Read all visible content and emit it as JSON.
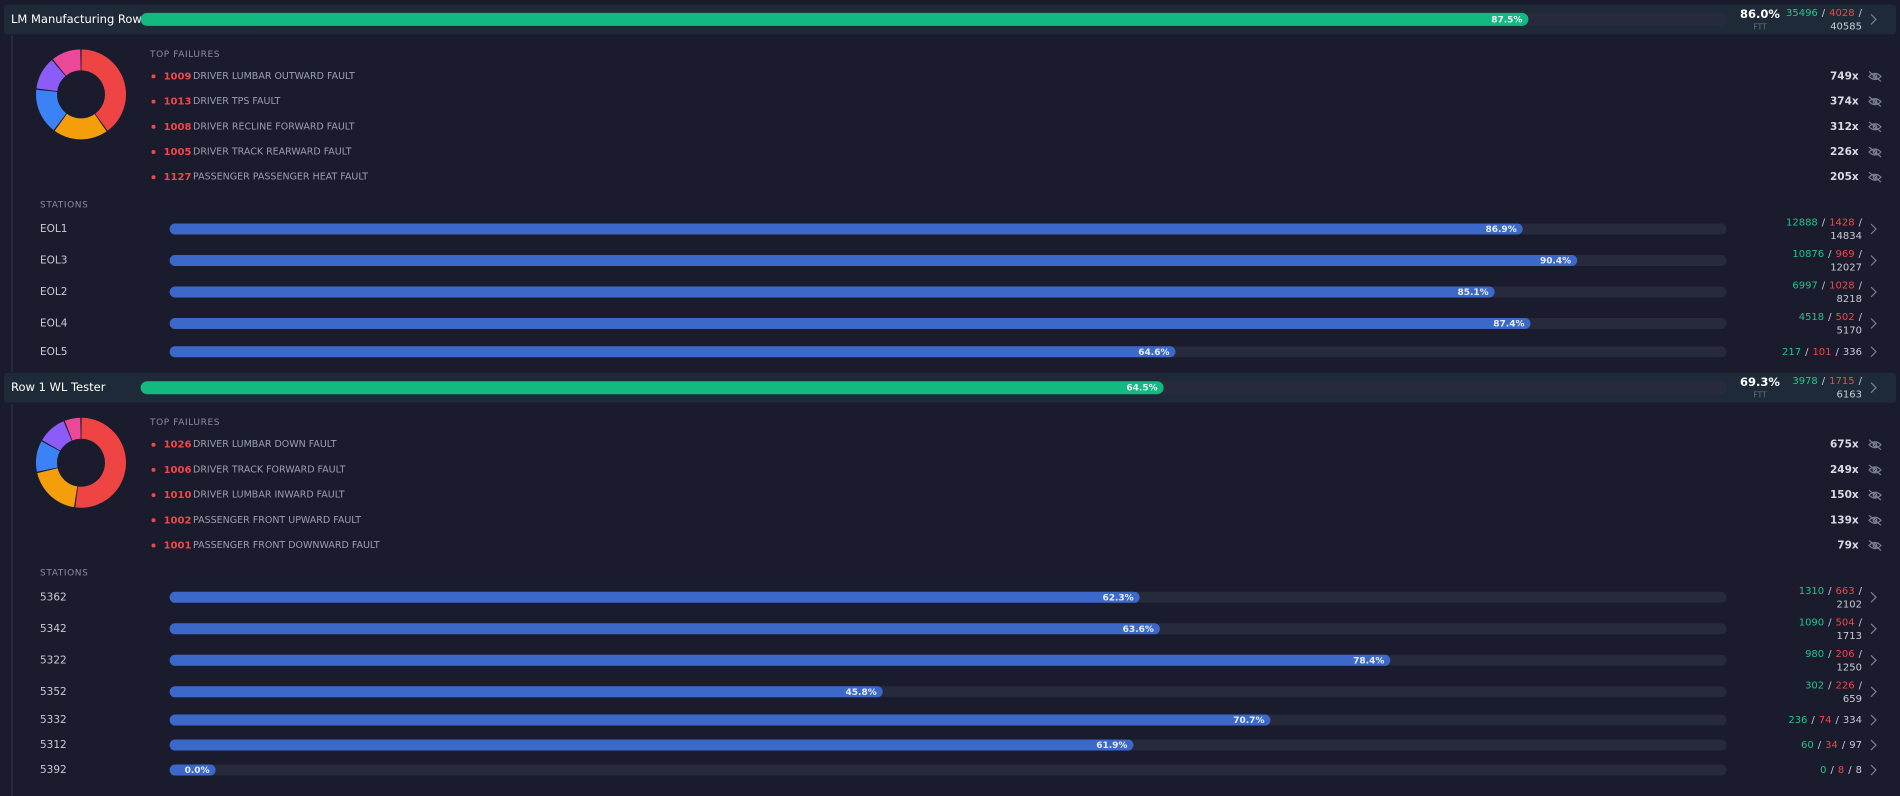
{
  "sep": "/",
  "donut_colors": [
    "#ef4444",
    "#f59e0b",
    "#3b82f6",
    "#8b5cf6",
    "#ec4899"
  ],
  "groups": [
    {
      "name": "LM Manufacturing Row...",
      "pct": {
        "value": 87.5,
        "label": "87.5%"
      },
      "ftt": {
        "value": 86.0,
        "label": "86.0%"
      },
      "ftt_label": "FTT",
      "pass": 35496,
      "fail": 4028,
      "total": 40585,
      "failures_title": "TOP FAILURES",
      "failures": [
        {
          "code": "1009",
          "name": "DRIVER LUMBAR OUTWARD FAULT",
          "count": {
            "value": 749,
            "label": "749x"
          }
        },
        {
          "code": "1013",
          "name": "DRIVER TPS FAULT",
          "count": {
            "value": 374,
            "label": "374x"
          }
        },
        {
          "code": "1008",
          "name": "DRIVER RECLINE FORWARD FAULT",
          "count": {
            "value": 312,
            "label": "312x"
          }
        },
        {
          "code": "1005",
          "name": "DRIVER TRACK REARWARD FAULT",
          "count": {
            "value": 226,
            "label": "226x"
          }
        },
        {
          "code": "1127",
          "name": "PASSENGER PASSENGER HEAT FAULT",
          "count": {
            "value": 205,
            "label": "205x"
          }
        }
      ],
      "stations_title": "STATIONS",
      "stations": [
        {
          "name": "EOL1",
          "pct": {
            "value": 86.9,
            "label": "86.9%"
          },
          "pass": 12888,
          "fail": 1428,
          "total": 14834
        },
        {
          "name": "EOL3",
          "pct": {
            "value": 90.4,
            "label": "90.4%"
          },
          "pass": 10876,
          "fail": 969,
          "total": 12027
        },
        {
          "name": "EOL2",
          "pct": {
            "value": 85.1,
            "label": "85.1%"
          },
          "pass": 6997,
          "fail": 1028,
          "total": 8218
        },
        {
          "name": "EOL4",
          "pct": {
            "value": 87.4,
            "label": "87.4%"
          },
          "pass": 4518,
          "fail": 502,
          "total": 5170
        },
        {
          "name": "EOL5",
          "pct": {
            "value": 64.6,
            "label": "64.6%"
          },
          "pass": 217,
          "fail": 101,
          "total": 336
        }
      ]
    },
    {
      "name": "Row 1 WL Tester",
      "pct": {
        "value": 64.5,
        "label": "64.5%"
      },
      "ftt": {
        "value": 69.3,
        "label": "69.3%"
      },
      "ftt_label": "FTT",
      "pass": 3978,
      "fail": 1715,
      "total": 6163,
      "failures_title": "TOP FAILURES",
      "failures": [
        {
          "code": "1026",
          "name": "DRIVER LUMBAR DOWN FAULT",
          "count": {
            "value": 675,
            "label": "675x"
          }
        },
        {
          "code": "1006",
          "name": "DRIVER TRACK FORWARD FAULT",
          "count": {
            "value": 249,
            "label": "249x"
          }
        },
        {
          "code": "1010",
          "name": "DRIVER LUMBAR INWARD FAULT",
          "count": {
            "value": 150,
            "label": "150x"
          }
        },
        {
          "code": "1002",
          "name": "PASSENGER FRONT UPWARD FAULT",
          "count": {
            "value": 139,
            "label": "139x"
          }
        },
        {
          "code": "1001",
          "name": "PASSENGER FRONT DOWNWARD FAULT",
          "count": {
            "value": 79,
            "label": "79x"
          }
        }
      ],
      "stations_title": "STATIONS",
      "stations": [
        {
          "name": "5362",
          "pct": {
            "value": 62.3,
            "label": "62.3%"
          },
          "pass": 1310,
          "fail": 663,
          "total": 2102
        },
        {
          "name": "5342",
          "pct": {
            "value": 63.6,
            "label": "63.6%"
          },
          "pass": 1090,
          "fail": 504,
          "total": 1713
        },
        {
          "name": "5322",
          "pct": {
            "value": 78.4,
            "label": "78.4%"
          },
          "pass": 980,
          "fail": 206,
          "total": 1250
        },
        {
          "name": "5352",
          "pct": {
            "value": 45.8,
            "label": "45.8%"
          },
          "pass": 302,
          "fail": 226,
          "total": 659
        },
        {
          "name": "5332",
          "pct": {
            "value": 70.7,
            "label": "70.7%"
          },
          "pass": 236,
          "fail": 74,
          "total": 334
        },
        {
          "name": "5312",
          "pct": {
            "value": 61.9,
            "label": "61.9%"
          },
          "pass": 60,
          "fail": 34,
          "total": 97
        },
        {
          "name": "5392",
          "pct": {
            "value": 0.0,
            "label": "0.0%"
          },
          "pass": 0,
          "fail": 8,
          "total": 8
        }
      ]
    }
  ]
}
